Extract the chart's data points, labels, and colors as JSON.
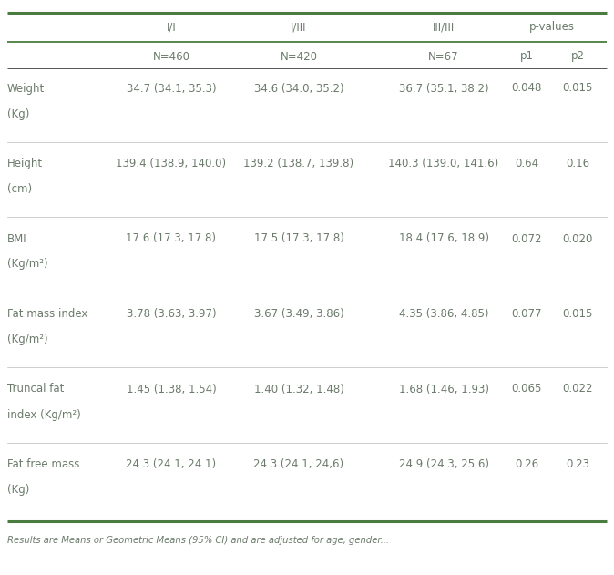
{
  "footer": "Results are Means or Geometric Means (95% CI) and are adjusted for age, gender...",
  "rows": [
    {
      "label_line1": "Weight",
      "label_line2": "(Kg)",
      "ii": "34.7 (34.1, 35.3)",
      "iiii": "34.6 (34.0, 35.2)",
      "iiiii": "36.7 (35.1, 38.2)",
      "p1": "0.048",
      "p2": "0.015"
    },
    {
      "label_line1": "Height",
      "label_line2": "(cm)",
      "ii": "139.4 (138.9, 140.0)",
      "iiii": "139.2 (138.7, 139.8)",
      "iiiii": "140.3 (139.0, 141.6)",
      "p1": "0.64",
      "p2": "0.16"
    },
    {
      "label_line1": "BMI",
      "label_line2": "(Kg/m²)",
      "ii": "17.6 (17.3, 17.8)",
      "iiii": "17.5 (17.3, 17.8)",
      "iiiii": "18.4 (17.6, 18.9)",
      "p1": "0.072",
      "p2": "0.020"
    },
    {
      "label_line1": "Fat mass index",
      "label_line2": "(Kg/m²)",
      "ii": "3.78 (3.63, 3.97)",
      "iiii": "3.67 (3.49, 3.86)",
      "iiiii": "4.35 (3.86, 4.85)",
      "p1": "0.077",
      "p2": "0.015"
    },
    {
      "label_line1": "Truncal fat",
      "label_line2": "index (Kg/m²)",
      "ii": "1.45 (1.38, 1.54)",
      "iiii": "1.40 (1.32, 1.48)",
      "iiiii": "1.68 (1.46, 1.93)",
      "p1": "0.065",
      "p2": "0.022"
    },
    {
      "label_line1": "Fat free mass",
      "label_line2": "(Kg)",
      "ii": "24.3 (24.1, 24.1)",
      "iiii": "24.3 (24.1, 24,6)",
      "iiiii": "24.9 (24.3, 25.6)",
      "p1": "0.26",
      "p2": "0.23"
    }
  ],
  "green_color": "#4a7c3f",
  "text_color": "#6b7b6b",
  "bg_color": "#ffffff",
  "font_size": 8.5
}
